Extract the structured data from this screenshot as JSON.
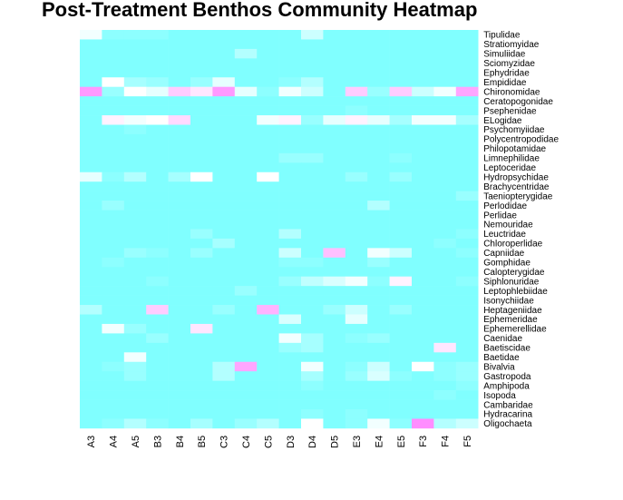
{
  "chart_data": {
    "type": "heatmap",
    "title": "Post-Treatment Benthos Community Heatmap",
    "xlabel": "",
    "ylabel": "",
    "colors": {
      "low": "#80FFFF",
      "high": "#FF80FF"
    },
    "columns": [
      "A3",
      "A4",
      "A5",
      "B3",
      "B4",
      "B5",
      "C3",
      "C4",
      "C5",
      "D3",
      "D4",
      "D5",
      "E3",
      "E4",
      "E5",
      "F3",
      "F4",
      "F5"
    ],
    "rows": [
      "Tipulidae",
      "Stratiomyidae",
      "Simuliidae",
      "Sciomyzidae",
      "Ephydridae",
      "Empididae",
      "Chironomidae",
      "Ceratopogonidae",
      "Psephenidae",
      "ELogidae",
      "Psychomyiidae",
      "Polycentropodidae",
      "Philopotamidae",
      "Limnephilidae",
      "Leptoceridae",
      "Hydropsychidae",
      "Brachycentridae",
      "Taeniopterygidae",
      "Perlodidae",
      "Perlidae",
      "Nemouridae",
      "Leuctridae",
      "Chloroperlidae",
      "Capniidae",
      "Gomphidae",
      "Calopterygidae",
      "Siphlonuridae",
      "Leptophlebiidae",
      "Isonychiidae",
      "Heptageniidae",
      "Ephemeridae",
      "Ephemerellidae",
      "Caenidae",
      "Baetiscidae",
      "Baetidae",
      "Bivalvia",
      "Gastropoda",
      "Amphipoda",
      "Isopoda",
      "Cambaridae",
      "Hydracarina",
      "Oligochaeta"
    ],
    "values": [
      [
        0.45,
        0.05,
        0.05,
        0.05,
        0,
        0,
        0,
        0,
        0,
        0,
        0.3,
        0,
        0,
        0,
        0,
        0,
        0,
        0
      ],
      [
        0,
        0,
        0,
        0,
        0,
        0,
        0,
        0,
        0,
        0,
        0,
        0,
        0,
        0,
        0,
        0,
        0,
        0
      ],
      [
        0,
        0,
        0,
        0,
        0,
        0,
        0,
        0.2,
        0,
        0,
        0,
        0,
        0,
        0,
        0,
        0,
        0,
        0
      ],
      [
        0,
        0,
        0,
        0,
        0,
        0,
        0,
        0,
        0,
        0,
        0,
        0,
        0,
        0,
        0,
        0,
        0,
        0
      ],
      [
        0,
        0,
        0,
        0,
        0,
        0,
        0,
        0,
        0,
        0,
        0,
        0,
        0,
        0,
        0,
        0,
        0,
        0
      ],
      [
        0,
        0.5,
        0.15,
        0.1,
        0,
        0.1,
        0.4,
        0,
        0,
        0.05,
        0.2,
        0,
        0,
        0,
        0,
        0,
        0,
        0
      ],
      [
        0.9,
        0.1,
        0.5,
        0.4,
        0.7,
        0.6,
        0.9,
        0.4,
        0.05,
        0.45,
        0.3,
        0,
        0.7,
        0.1,
        0.7,
        0.3,
        0.45,
        0.85
      ],
      [
        0,
        0,
        0,
        0,
        0,
        0,
        0,
        0,
        0,
        0,
        0,
        0,
        0,
        0,
        0,
        0,
        0,
        0
      ],
      [
        0,
        0,
        0,
        0,
        0,
        0,
        0,
        0,
        0,
        0,
        0,
        0,
        0.05,
        0,
        0,
        0,
        0,
        0
      ],
      [
        0,
        0.55,
        0.45,
        0.5,
        0.65,
        0,
        0,
        0,
        0.45,
        0.55,
        0.1,
        0.4,
        0.55,
        0.4,
        0.15,
        0.45,
        0.45,
        0.15
      ],
      [
        0,
        0,
        0.05,
        0,
        0,
        0,
        0,
        0,
        0,
        0,
        0,
        0,
        0,
        0,
        0,
        0,
        0,
        0
      ],
      [
        0,
        0,
        0,
        0,
        0,
        0,
        0,
        0,
        0,
        0,
        0,
        0,
        0,
        0,
        0,
        0,
        0,
        0
      ],
      [
        0,
        0,
        0,
        0,
        0,
        0,
        0,
        0,
        0,
        0,
        0,
        0,
        0,
        0,
        0,
        0,
        0,
        0
      ],
      [
        0,
        0,
        0,
        0,
        0,
        0,
        0,
        0,
        0,
        0.1,
        0.1,
        0,
        0,
        0,
        0.05,
        0,
        0,
        0
      ],
      [
        0,
        0,
        0,
        0,
        0,
        0,
        0,
        0,
        0,
        0,
        0,
        0,
        0,
        0,
        0,
        0,
        0,
        0
      ],
      [
        0.4,
        0.05,
        0.2,
        0,
        0.15,
        0.5,
        0,
        0,
        0.5,
        0,
        0,
        0,
        0.1,
        0,
        0.1,
        0,
        0,
        0
      ],
      [
        0,
        0,
        0,
        0,
        0,
        0,
        0,
        0,
        0,
        0,
        0,
        0,
        0,
        0,
        0,
        0,
        0,
        0
      ],
      [
        0,
        0,
        0,
        0,
        0,
        0,
        0,
        0,
        0,
        0,
        0,
        0,
        0,
        0,
        0,
        0,
        0,
        0.1
      ],
      [
        0,
        0.1,
        0,
        0,
        0,
        0,
        0,
        0,
        0,
        0,
        0,
        0,
        0,
        0.2,
        0,
        0,
        0,
        0
      ],
      [
        0,
        0,
        0,
        0,
        0,
        0,
        0,
        0,
        0,
        0,
        0,
        0,
        0,
        0,
        0,
        0,
        0,
        0
      ],
      [
        0,
        0,
        0,
        0,
        0,
        0,
        0,
        0,
        0,
        0,
        0,
        0,
        0,
        0,
        0,
        0,
        0,
        0
      ],
      [
        0,
        0,
        0,
        0,
        0,
        0.1,
        0,
        0,
        0,
        0.2,
        0,
        0,
        0,
        0,
        0,
        0,
        0,
        0.05
      ],
      [
        0,
        0,
        0,
        0,
        0,
        0,
        0.15,
        0,
        0,
        0,
        0,
        0,
        0,
        0,
        0,
        0,
        0.05,
        0
      ],
      [
        0,
        0,
        0.1,
        0.05,
        0,
        0.1,
        0,
        0,
        0,
        0.3,
        0,
        0.75,
        0,
        0.45,
        0.3,
        0,
        0,
        0.05
      ],
      [
        0,
        0.05,
        0,
        0,
        0,
        0,
        0,
        0,
        0,
        0.05,
        0.05,
        0,
        0,
        0.1,
        0,
        0,
        0,
        0
      ],
      [
        0,
        0,
        0,
        0,
        0,
        0,
        0,
        0,
        0,
        0,
        0,
        0,
        0,
        0,
        0,
        0,
        0,
        0
      ],
      [
        0,
        0,
        0,
        0.05,
        0,
        0,
        0,
        0,
        0,
        0.1,
        0.25,
        0.35,
        0.45,
        0.05,
        0.55,
        0,
        0,
        0.05
      ],
      [
        0,
        0,
        0,
        0,
        0,
        0,
        0,
        0.1,
        0,
        0,
        0,
        0,
        0,
        0,
        0,
        0,
        0,
        0
      ],
      [
        0,
        0,
        0,
        0,
        0,
        0,
        0,
        0,
        0,
        0,
        0,
        0,
        0,
        0,
        0,
        0,
        0,
        0
      ],
      [
        0.2,
        0,
        0,
        0.7,
        0,
        0,
        0.1,
        0,
        0.8,
        0,
        0,
        0.1,
        0.3,
        0,
        0.1,
        0,
        0,
        0
      ],
      [
        0,
        0,
        0,
        0,
        0,
        0,
        0,
        0,
        0,
        0.35,
        0,
        0,
        0.4,
        0,
        0,
        0,
        0,
        0
      ],
      [
        0,
        0.45,
        0.1,
        0,
        0,
        0.6,
        0,
        0,
        0,
        0,
        0,
        0,
        0,
        0,
        0,
        0,
        0,
        0
      ],
      [
        0,
        0,
        0,
        0.1,
        0,
        0,
        0,
        0,
        0,
        0.45,
        0.15,
        0,
        0.05,
        0.1,
        0,
        0,
        0,
        0
      ],
      [
        0,
        0,
        0,
        0,
        0,
        0,
        0,
        0,
        0,
        0.1,
        0.15,
        0,
        0,
        0,
        0,
        0,
        0.6,
        0
      ],
      [
        0,
        0,
        0.45,
        0,
        0,
        0,
        0,
        0,
        0,
        0,
        0,
        0,
        0,
        0,
        0,
        0,
        0,
        0
      ],
      [
        0,
        0.05,
        0.1,
        0,
        0,
        0,
        0.2,
        0.85,
        0,
        0,
        0.45,
        0,
        0.05,
        0.3,
        0,
        0.5,
        0.05,
        0.1
      ],
      [
        0,
        0,
        0.1,
        0,
        0,
        0,
        0.2,
        0,
        0,
        0,
        0.15,
        0,
        0.1,
        0.35,
        0.05,
        0,
        0.05,
        0.1
      ],
      [
        0,
        0,
        0,
        0,
        0,
        0,
        0,
        0,
        0,
        0,
        0.05,
        0,
        0,
        0,
        0,
        0,
        0,
        0.05
      ],
      [
        0,
        0,
        0,
        0,
        0,
        0,
        0,
        0,
        0,
        0,
        0,
        0,
        0,
        0,
        0,
        0,
        0.05,
        0
      ],
      [
        0,
        0,
        0,
        0,
        0,
        0,
        0,
        0,
        0,
        0,
        0,
        0,
        0,
        0,
        0,
        0,
        0,
        0
      ],
      [
        0,
        0,
        0,
        0,
        0,
        0,
        0,
        0,
        0,
        0,
        0.05,
        0,
        0.05,
        0,
        0,
        0,
        0,
        0
      ],
      [
        0,
        0.05,
        0.2,
        0.05,
        0,
        0.15,
        0,
        0.1,
        0.2,
        0,
        0.5,
        0,
        0.05,
        0.45,
        0.05,
        0.95,
        0.2,
        0.3
      ]
    ]
  }
}
